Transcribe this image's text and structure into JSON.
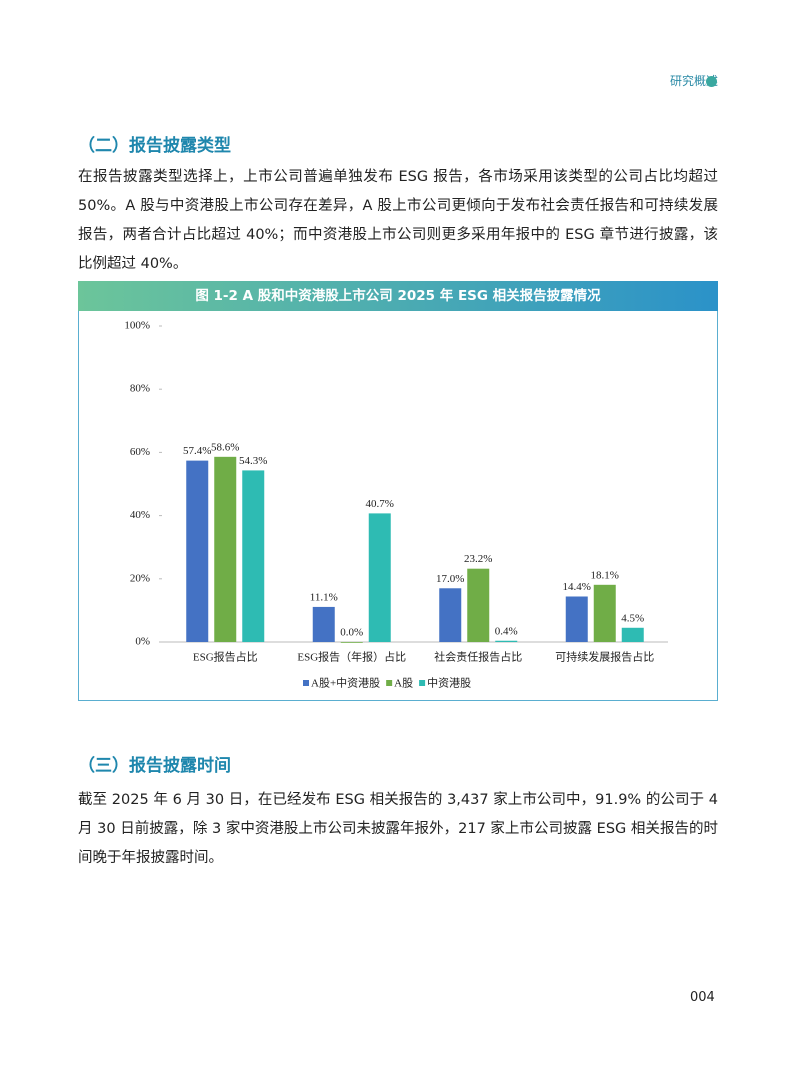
{
  "header": {
    "section": "研究概述"
  },
  "sections": [
    {
      "heading": "（二）报告披露类型",
      "paragraph": "在报告披露类型选择上，上市公司普遍单独发布 ESG 报告，各市场采用该类型的公司占比均超过 50%。A 股与中资港股上市公司存在差异，A 股上市公司更倾向于发布社会责任报告和可持续发展报告，两者合计占比超过 40%；而中资港股上市公司则更多采用年报中的 ESG 章节进行披露，该比例超过 40%。"
    },
    {
      "heading": "（三）报告披露时间",
      "paragraph": "截至 2025 年 6 月 30 日，在已经发布 ESG 相关报告的 3,437 家上市公司中，91.9% 的公司于 4 月 30 日前披露，除 3 家中资港股上市公司未披露年报外，217 家上市公司披露 ESG 相关报告的时间晚于年报披露时间。"
    }
  ],
  "chart_data": {
    "type": "bar",
    "title": "图 1-2 A 股和中资港股上市公司 2025 年 ESG 相关报告披露情况",
    "categories": [
      "ESG报告占比",
      "ESG报告（年报）占比",
      "社会责任报告占比",
      "可持续发展报告占比"
    ],
    "series": [
      {
        "name": "A股+中资港股",
        "color": "#4472c4",
        "values": [
          57.4,
          11.1,
          17.0,
          14.4
        ],
        "value_labels": [
          "57.4%",
          "11.1%",
          "17.0%",
          "14.4%"
        ]
      },
      {
        "name": "A股",
        "color": "#70ad47",
        "values": [
          58.6,
          0,
          23.2,
          18.1
        ],
        "value_labels": [
          "58.6%",
          "0.0%",
          "23.2%",
          "18.1%"
        ]
      },
      {
        "name": "中资港股",
        "color": "#2ebbb3",
        "values": [
          54.3,
          40.7,
          0.4,
          4.5
        ],
        "value_labels": [
          "54.3%",
          "40.7%",
          "0.4%",
          "4.5%"
        ]
      }
    ],
    "ylim": [
      0,
      100
    ],
    "yticks": [
      {
        "value": 0,
        "label": "0%"
      },
      {
        "value": 20,
        "label": "20%"
      },
      {
        "value": 40,
        "label": "40%"
      },
      {
        "value": 60,
        "label": "60%"
      },
      {
        "value": 80,
        "label": "80%"
      },
      {
        "value": 100,
        "label": "100%"
      }
    ],
    "legend": "bottom"
  },
  "footer": {
    "page": "004"
  }
}
